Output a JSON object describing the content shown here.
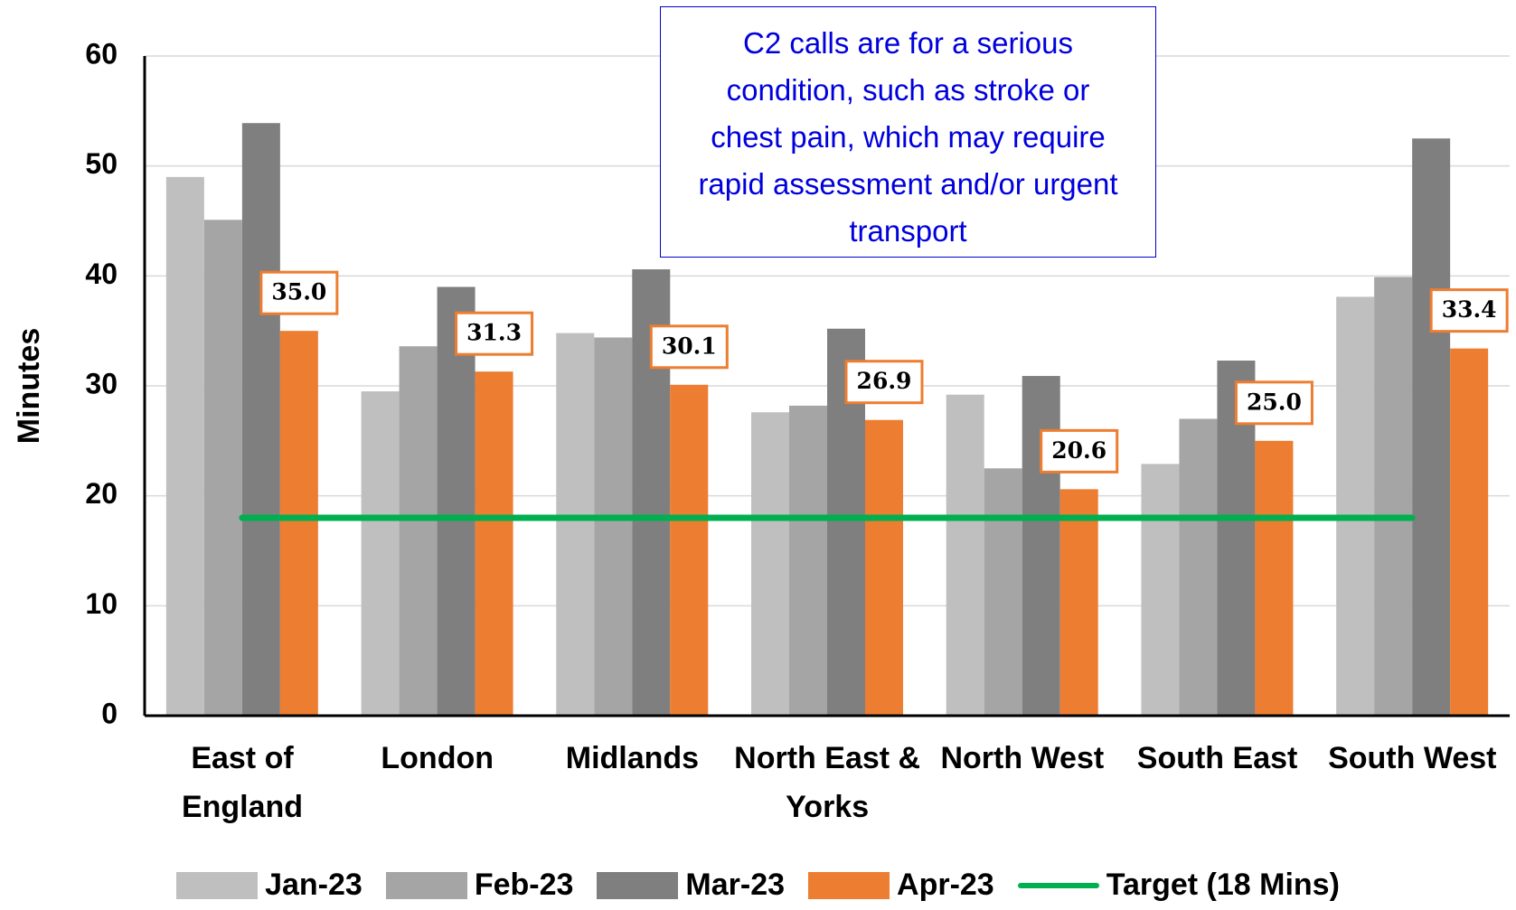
{
  "chart_data": {
    "type": "bar",
    "y_label": "Minutes",
    "annotation": "C2 calls are for a serious condition, such as stroke or chest pain, which may require rapid assessment and/or urgent transport",
    "categories": [
      "East of England",
      "London",
      "Midlands",
      "North East & Yorks",
      "North West",
      "South East",
      "South West"
    ],
    "series": [
      {
        "name": "Jan-23",
        "color": "#bfbfbf",
        "values": [
          49.0,
          29.5,
          34.8,
          27.6,
          29.2,
          22.9,
          38.1
        ]
      },
      {
        "name": "Feb-23",
        "color": "#a5a5a5",
        "values": [
          45.1,
          33.6,
          34.4,
          28.2,
          22.5,
          27.0,
          39.9
        ]
      },
      {
        "name": "Mar-23",
        "color": "#7f7f7f",
        "values": [
          53.9,
          39.0,
          40.6,
          35.2,
          30.9,
          32.3,
          52.5
        ]
      },
      {
        "name": "Apr-23",
        "color": "#ed7d31",
        "values": [
          35.0,
          31.3,
          30.1,
          26.9,
          20.6,
          25.0,
          33.4
        ],
        "value_labels": [
          "35.0",
          "31.3",
          "30.1",
          "26.9",
          "20.6",
          "25.0",
          "33.4"
        ]
      }
    ],
    "target": {
      "name": "Target (18 Mins)",
      "value": 18,
      "color": "#00b050"
    },
    "ylim": [
      0,
      60
    ],
    "yticks": [
      0,
      10,
      20,
      30,
      40,
      50,
      60
    ],
    "grid": true
  }
}
